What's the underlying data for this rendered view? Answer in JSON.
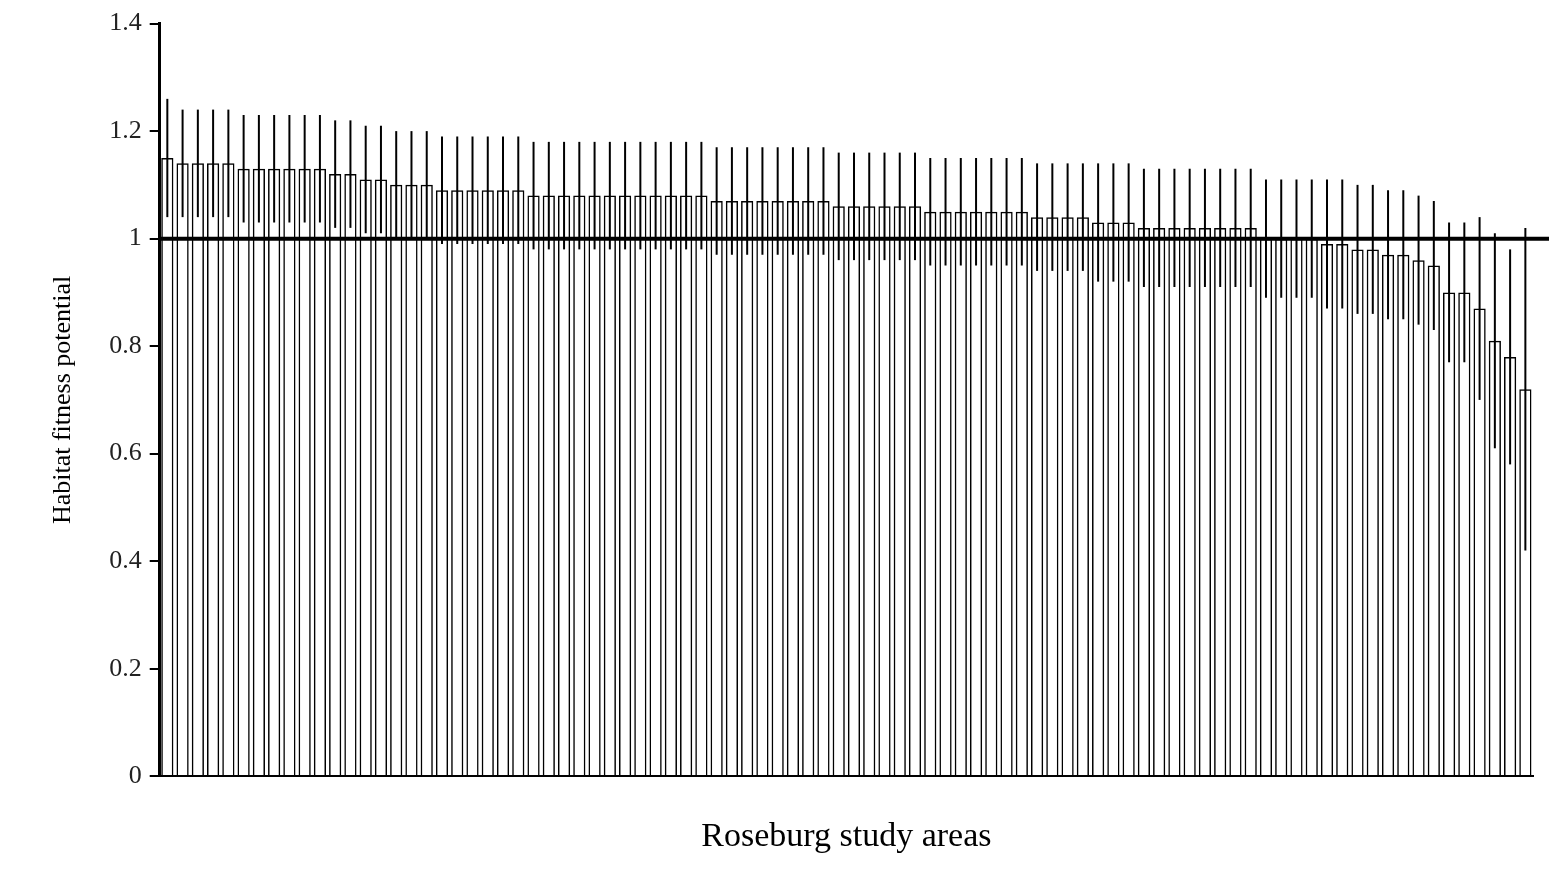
{
  "chart_data": {
    "type": "bar",
    "xlabel": "Roseburg study areas",
    "ylabel": "Habitat fitness potential",
    "categories": [
      null,
      null,
      null,
      null,
      null,
      null,
      null,
      null,
      null,
      null,
      null,
      null,
      null,
      null,
      null,
      null,
      null,
      null,
      null,
      null,
      null,
      null,
      null,
      null,
      null,
      null,
      null,
      null,
      null,
      null,
      null,
      null,
      null,
      null,
      null,
      null,
      null,
      null,
      null,
      null,
      null,
      null,
      null,
      null,
      null,
      null,
      null,
      null,
      null,
      null,
      null,
      null,
      null,
      null,
      null,
      null,
      null,
      null,
      null,
      null,
      null,
      null,
      null,
      null,
      null,
      null,
      null,
      null,
      null,
      null,
      null,
      null,
      null,
      null,
      null,
      null,
      null,
      null,
      null,
      null,
      null,
      null,
      null,
      null,
      null,
      null,
      null,
      null,
      null,
      null
    ],
    "values": [
      1.15,
      1.14,
      1.14,
      1.14,
      1.14,
      1.13,
      1.13,
      1.13,
      1.13,
      1.13,
      1.13,
      1.12,
      1.12,
      1.11,
      1.11,
      1.1,
      1.1,
      1.1,
      1.09,
      1.09,
      1.09,
      1.09,
      1.09,
      1.09,
      1.08,
      1.08,
      1.08,
      1.08,
      1.08,
      1.08,
      1.08,
      1.08,
      1.08,
      1.08,
      1.08,
      1.08,
      1.07,
      1.07,
      1.07,
      1.07,
      1.07,
      1.07,
      1.07,
      1.07,
      1.06,
      1.06,
      1.06,
      1.06,
      1.06,
      1.06,
      1.05,
      1.05,
      1.05,
      1.05,
      1.05,
      1.05,
      1.05,
      1.04,
      1.04,
      1.04,
      1.04,
      1.03,
      1.03,
      1.03,
      1.02,
      1.02,
      1.02,
      1.02,
      1.02,
      1.02,
      1.02,
      1.02,
      1.0,
      1.0,
      1.0,
      1.0,
      0.99,
      0.99,
      0.98,
      0.98,
      0.97,
      0.97,
      0.96,
      0.95,
      0.9,
      0.9,
      0.87,
      0.81,
      0.78,
      0.72
    ],
    "errors": [
      0.11,
      0.1,
      0.1,
      0.1,
      0.1,
      0.1,
      0.1,
      0.1,
      0.1,
      0.1,
      0.1,
      0.1,
      0.1,
      0.1,
      0.1,
      0.1,
      0.1,
      0.1,
      0.1,
      0.1,
      0.1,
      0.1,
      0.1,
      0.1,
      0.1,
      0.1,
      0.1,
      0.1,
      0.1,
      0.1,
      0.1,
      0.1,
      0.1,
      0.1,
      0.1,
      0.1,
      0.1,
      0.1,
      0.1,
      0.1,
      0.1,
      0.1,
      0.1,
      0.1,
      0.1,
      0.1,
      0.1,
      0.1,
      0.1,
      0.1,
      0.1,
      0.1,
      0.1,
      0.1,
      0.1,
      0.1,
      0.1,
      0.1,
      0.1,
      0.1,
      0.1,
      0.11,
      0.11,
      0.11,
      0.11,
      0.11,
      0.11,
      0.11,
      0.11,
      0.11,
      0.11,
      0.11,
      0.11,
      0.11,
      0.11,
      0.11,
      0.12,
      0.12,
      0.12,
      0.12,
      0.12,
      0.12,
      0.12,
      0.12,
      0.13,
      0.13,
      0.17,
      0.2,
      0.2,
      0.3
    ],
    "color": "#000000",
    "ylim": [
      0,
      1.4
    ],
    "yticks": [
      0,
      0.2,
      0.4,
      0.6,
      0.8,
      1,
      1.2,
      1.4
    ],
    "ref_lines": [
      {
        "axis": "y",
        "value": 1
      }
    ],
    "grid": false,
    "legend": false
  }
}
